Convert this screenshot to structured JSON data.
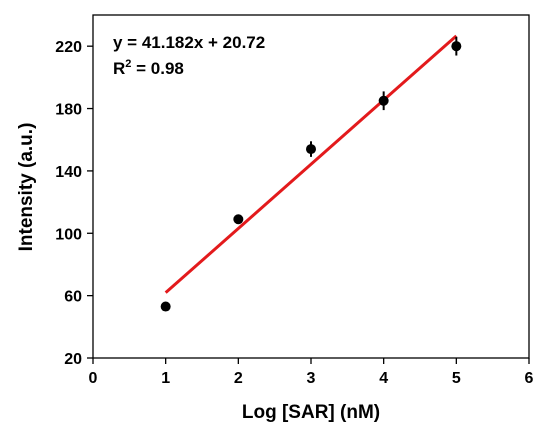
{
  "chart_data": {
    "type": "scatter",
    "title": "",
    "xlabel": "Log [SAR] (nM)",
    "ylabel": "Intensity (a.u.)",
    "xlim": [
      0,
      6
    ],
    "ylim": [
      20,
      240
    ],
    "x_ticks": [
      0,
      1,
      2,
      3,
      4,
      5,
      6
    ],
    "y_ticks": [
      20,
      60,
      100,
      140,
      180,
      220
    ],
    "grid": false,
    "series": [
      {
        "x": [
          1,
          2,
          3,
          4,
          5
        ],
        "y": [
          53,
          109,
          154,
          185,
          220
        ],
        "error": [
          2,
          3,
          5,
          6,
          6
        ],
        "color": "#000000"
      }
    ],
    "fit": {
      "slope": 41.182,
      "intercept": 20.72,
      "x_range": [
        1,
        5
      ],
      "color": "#e31a1c"
    },
    "annotations": {
      "equation": "y = 41.182x + 20.72",
      "r2_prefix": "R",
      "r2_sup": "2",
      "r2_suffix": " = 0.98"
    }
  }
}
